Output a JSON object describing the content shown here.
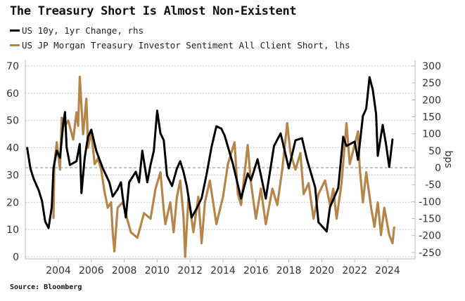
{
  "chart_data": {
    "type": "line",
    "title": "The Treasury Short Is Almost Non-Existent",
    "source": "Source: Bloomberg",
    "xlabel": "",
    "ylabel_left": "",
    "ylabel_right": "bps",
    "xlim": [
      2002.0,
      2025.5
    ],
    "ylim_left": [
      0,
      70
    ],
    "ylim_right": [
      -270,
      300
    ],
    "x_ticks": [
      2004,
      2006,
      2008,
      2010,
      2012,
      2014,
      2016,
      2018,
      2020,
      2022,
      2024
    ],
    "x_tick_labels": [
      "2004",
      "2006",
      "2008",
      "2010",
      "2012",
      "2014",
      "2016",
      "2018",
      "2020",
      "2022",
      "2024"
    ],
    "y_ticks_left": [
      0,
      10,
      20,
      30,
      40,
      50,
      60,
      70
    ],
    "y_tick_labels_left": [
      "0",
      "10",
      "20",
      "30",
      "40",
      "50",
      "60",
      "70"
    ],
    "y_ticks_right": [
      -250,
      -200,
      -150,
      -100,
      -50,
      0,
      50,
      100,
      150,
      200,
      250,
      300
    ],
    "y_tick_labels_right": [
      "-250",
      "-200",
      "-150",
      "-100",
      "-50",
      "0",
      "50",
      "100",
      "150",
      "200",
      "250",
      "300"
    ],
    "zero_line_right": 0,
    "grid": true,
    "legend_position": "top-left",
    "series": [
      {
        "name": "US 10y, 1yr Change, rhs",
        "axis": "right",
        "color": "#000000",
        "x": [
          2002.1,
          2002.3,
          2002.5,
          2002.8,
          2003.0,
          2003.2,
          2003.4,
          2003.6,
          2003.7,
          2003.9,
          2004.1,
          2004.3,
          2004.4,
          2004.5,
          2004.7,
          2005.1,
          2005.3,
          2005.4,
          2005.6,
          2005.8,
          2006.0,
          2006.3,
          2006.7,
          2007.1,
          2007.3,
          2007.6,
          2007.8,
          2007.9,
          2008.1,
          2008.3,
          2008.7,
          2008.9,
          2009.1,
          2009.4,
          2009.6,
          2009.8,
          2010.0,
          2010.2,
          2010.4,
          2010.6,
          2010.9,
          2011.2,
          2011.4,
          2011.6,
          2011.8,
          2012.1,
          2012.4,
          2012.7,
          2013.0,
          2013.3,
          2013.6,
          2013.9,
          2014.1,
          2014.6,
          2015.1,
          2015.5,
          2015.7,
          2016.1,
          2016.6,
          2017.1,
          2017.5,
          2018.0,
          2018.4,
          2018.8,
          2019.1,
          2019.6,
          2019.8,
          2020.3,
          2020.5,
          2021.0,
          2021.3,
          2021.5,
          2022.0,
          2022.2,
          2022.5,
          2022.7,
          2022.9,
          2023.1,
          2023.3,
          2023.4,
          2023.7,
          2023.9,
          2024.1,
          2024.3
        ],
        "values": [
          60,
          -2,
          -33,
          -66,
          -97,
          -159,
          -178,
          -116,
          -2,
          50,
          29,
          132,
          164,
          60,
          8,
          19,
          70,
          -75,
          29,
          91,
          112,
          50,
          -2,
          -43,
          -85,
          -64,
          -43,
          -85,
          -147,
          -43,
          -12,
          -43,
          50,
          -43,
          8,
          50,
          168,
          101,
          81,
          -23,
          -54,
          -2,
          19,
          -12,
          -54,
          -147,
          -120,
          -90,
          -20,
          60,
          122,
          115,
          95,
          12,
          -91,
          -17,
          -37,
          25,
          -91,
          64,
          101,
          -2,
          81,
          87,
          25,
          -58,
          -161,
          -188,
          -116,
          -60,
          91,
          64,
          77,
          23,
          153,
          174,
          267,
          230,
          159,
          35,
          126,
          70,
          2,
          85
        ]
      },
      {
        "name": "US JP Morgan Treasury Investor Sentiment All Client Short, lhs",
        "axis": "left",
        "color": "#B5854A",
        "x": [
          2003.7,
          2003.75,
          2003.9,
          2004.1,
          2004.2,
          2004.4,
          2004.6,
          2004.9,
          2005.1,
          2005.2,
          2005.3,
          2005.5,
          2005.7,
          2005.8,
          2006.0,
          2006.2,
          2006.4,
          2006.6,
          2006.8,
          2007.0,
          2007.2,
          2007.3,
          2007.4,
          2007.6,
          2007.9,
          2008.4,
          2008.8,
          2009.2,
          2009.6,
          2009.9,
          2010.2,
          2010.4,
          2010.5,
          2010.8,
          2011.0,
          2011.2,
          2011.4,
          2011.6,
          2011.7,
          2011.9,
          2012.2,
          2012.5,
          2012.7,
          2012.9,
          2013.2,
          2013.6,
          2014.0,
          2014.3,
          2014.7,
          2014.9,
          2015.1,
          2015.5,
          2015.7,
          2016.0,
          2016.3,
          2016.6,
          2017.0,
          2017.3,
          2017.6,
          2017.9,
          2018.1,
          2018.4,
          2018.7,
          2018.9,
          2019.2,
          2019.5,
          2019.8,
          2020.2,
          2020.5,
          2020.7,
          2020.9,
          2021.2,
          2021.5,
          2021.7,
          2022.2,
          2022.3,
          2022.5,
          2022.7,
          2023.0,
          2023.2,
          2023.4,
          2023.6,
          2023.8,
          2024.1,
          2024.3,
          2024.4
        ],
        "values": [
          14,
          34,
          42,
          32,
          51,
          48,
          50,
          43,
          53,
          48,
          66,
          45,
          58,
          40,
          46,
          34,
          36,
          32,
          24,
          18,
          20,
          9,
          2,
          18,
          20,
          9,
          7,
          16,
          14,
          25,
          31,
          17,
          12,
          20,
          9,
          22,
          28,
          15,
          0,
          22,
          9,
          22,
          5,
          20,
          28,
          12,
          22,
          34,
          42,
          23,
          19,
          41,
          27,
          14,
          25,
          12,
          25,
          19,
          32,
          49,
          38,
          32,
          38,
          23,
          27,
          14,
          23,
          28,
          19,
          25,
          14,
          27,
          49,
          34,
          46,
          33,
          20,
          31,
          18,
          11,
          20,
          8,
          18,
          8,
          5,
          11
        ]
      }
    ]
  }
}
